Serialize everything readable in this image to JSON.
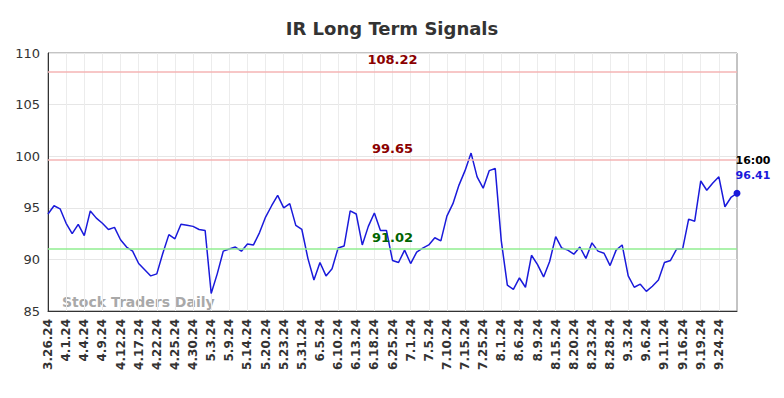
{
  "chart_data": {
    "type": "line",
    "title": "IR Long Term Signals",
    "categories": [
      "3.26.24",
      null,
      null,
      "4.1.24",
      null,
      null,
      "4.4.24",
      null,
      null,
      "4.9.24",
      null,
      null,
      "4.12.24",
      null,
      null,
      "4.17.24",
      null,
      null,
      "4.22.24",
      null,
      null,
      "4.25.24",
      null,
      null,
      "4.30.24",
      null,
      null,
      "5.3.24",
      null,
      null,
      "5.9.24",
      null,
      null,
      "5.14.24",
      null,
      null,
      "5.20.24",
      null,
      null,
      "5.23.24",
      null,
      null,
      "5.31.24",
      null,
      null,
      "6.5.24",
      null,
      null,
      "6.10.24",
      null,
      null,
      "6.13.24",
      null,
      null,
      "6.18.24",
      null,
      null,
      "6.25.24",
      null,
      null,
      "7.1.24",
      null,
      null,
      "7.5.24",
      null,
      null,
      "7.10.24",
      null,
      null,
      "7.15.24",
      null,
      null,
      "7.25.24",
      null,
      null,
      "8.1.24",
      null,
      null,
      "8.6.24",
      null,
      null,
      "8.9.24",
      null,
      null,
      "8.15.24",
      null,
      null,
      "8.20.24",
      null,
      null,
      "8.23.24",
      null,
      null,
      "8.28.24",
      null,
      null,
      "9.3.24",
      null,
      null,
      "9.6.24",
      null,
      null,
      "9.11.24",
      null,
      null,
      "9.16.24",
      null,
      null,
      "9.19.24",
      null,
      null,
      "9.24.24",
      null,
      null,
      null
    ],
    "values": [
      94.4,
      95.2,
      94.9,
      93.5,
      92.5,
      93.4,
      92.3,
      94.7,
      94.0,
      93.5,
      92.9,
      93.1,
      91.9,
      91.2,
      90.8,
      89.6,
      89.0,
      88.4,
      88.6,
      90.6,
      92.4,
      92.0,
      93.4,
      93.3,
      93.2,
      92.9,
      92.8,
      86.7,
      88.6,
      90.8,
      91.0,
      91.2,
      90.8,
      91.5,
      91.4,
      92.6,
      94.1,
      95.2,
      96.2,
      95.0,
      95.4,
      93.3,
      92.9,
      90.1,
      88.0,
      89.7,
      88.4,
      89.1,
      91.1,
      91.3,
      94.7,
      94.4,
      91.4,
      93.2,
      94.5,
      92.8,
      92.8,
      89.9,
      89.7,
      90.9,
      89.6,
      90.7,
      91.1,
      91.4,
      92.1,
      91.8,
      94.2,
      95.4,
      97.2,
      98.6,
      100.3,
      98.0,
      96.9,
      98.6,
      98.8,
      91.8,
      87.5,
      87.1,
      88.2,
      87.3,
      90.4,
      89.5,
      88.3,
      89.8,
      92.2,
      91.1,
      90.9,
      90.5,
      91.2,
      90.1,
      91.6,
      90.8,
      90.6,
      89.4,
      90.9,
      91.4,
      88.4,
      87.3,
      87.6,
      86.9,
      87.4,
      88.0,
      89.7,
      89.9,
      91.0,
      91.0,
      93.9,
      93.7,
      97.6,
      96.7,
      97.4,
      98.0,
      95.1,
      96.0,
      96.41
    ],
    "color": "#1a1adb",
    "ylim": [
      85,
      110
    ],
    "yticks": [
      85,
      90,
      95,
      100,
      105,
      110
    ],
    "grid": true,
    "levels": [
      {
        "value": 108.22,
        "color": "#f4b4b4",
        "label_color": "#8b0000"
      },
      {
        "value": 99.65,
        "color": "#f4b4b4",
        "label_color": "#8b0000"
      },
      {
        "value": 91.02,
        "color": "#90ee90",
        "label_color": "#006400"
      }
    ],
    "last_point": {
      "label": "16:00"
    },
    "watermark": "Stock Traders Daily"
  }
}
